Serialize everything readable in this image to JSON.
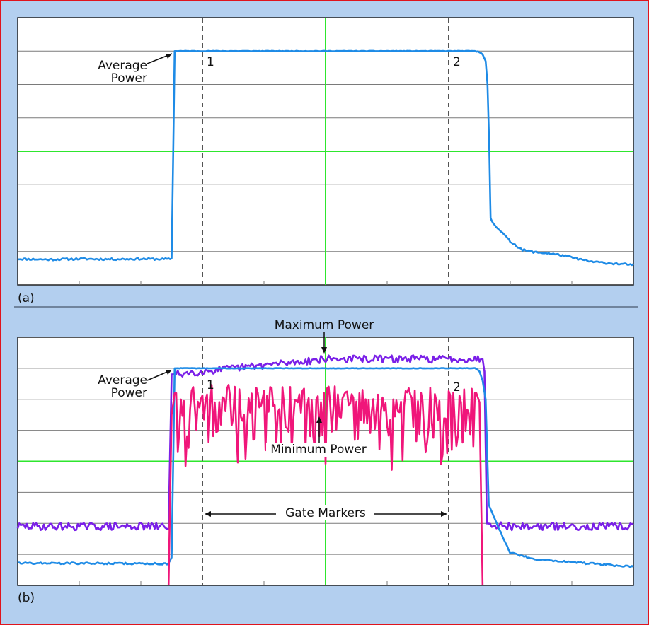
{
  "colors": {
    "background": "#b3cfef",
    "frame_border": "#e0141c",
    "plot_bg": "#ffffff",
    "grid": "#7a7a7a",
    "center_grid": "#2ee62e",
    "gate_marker": "#555555",
    "average_power": "#1e8be6",
    "maximum_power": "#7a1fe8",
    "minimum_power": "#f0167a",
    "separator": "#5a6b82",
    "text": "#111111"
  },
  "chart_data": [
    {
      "type": "line",
      "panel_label": "(a)",
      "grid": "10 x 8 divisions, center lines highlighted",
      "annotations": {
        "average_power": [
          "Average",
          "Power"
        ],
        "marker_1": "1",
        "marker_2": "2"
      },
      "x_range": [
        0,
        10
      ],
      "y_range": [
        0,
        8
      ],
      "gate_markers_x": [
        3,
        7
      ],
      "series": [
        {
          "key": "average",
          "points": [
            [
              0,
              0.78
            ],
            [
              0.5,
              0.76
            ],
            [
              1,
              0.78
            ],
            [
              1.5,
              0.77
            ],
            [
              2,
              0.78
            ],
            [
              2.48,
              0.77
            ],
            [
              2.5,
              0.8
            ],
            [
              2.55,
              7.0
            ],
            [
              2.6,
              7.0
            ],
            [
              5,
              7.0
            ],
            [
              7.4,
              7.0
            ],
            [
              7.5,
              6.98
            ],
            [
              7.55,
              6.9
            ],
            [
              7.6,
              6.7
            ],
            [
              7.63,
              6.0
            ],
            [
              7.66,
              4.0
            ],
            [
              7.68,
              2.0
            ],
            [
              7.7,
              1.9
            ],
            [
              7.8,
              1.7
            ],
            [
              8.0,
              1.3
            ],
            [
              8.2,
              1.05
            ],
            [
              8.4,
              0.98
            ],
            [
              8.6,
              0.95
            ],
            [
              8.8,
              0.9
            ],
            [
              9.0,
              0.82
            ],
            [
              9.3,
              0.7
            ],
            [
              9.6,
              0.65
            ],
            [
              10,
              0.6
            ]
          ],
          "noise": 0.03
        }
      ]
    },
    {
      "type": "line",
      "panel_label": "(b)",
      "grid": "10 x 8 divisions, center lines highlighted",
      "annotations": {
        "maximum_power": "Maximum Power",
        "average_power": [
          "Average",
          "Power"
        ],
        "minimum_power": "Minimum Power",
        "gate_markers": "Gate Markers",
        "marker_1": "1",
        "marker_2": "2"
      },
      "x_range": [
        0,
        10
      ],
      "y_range": [
        0,
        8
      ],
      "gate_markers_x": [
        3,
        7
      ],
      "series": [
        {
          "key": "maximum",
          "points": [
            [
              0,
              1.9
            ],
            [
              2.45,
              1.9
            ],
            [
              2.5,
              6.8
            ],
            [
              5,
              7.3
            ],
            [
              7.45,
              7.3
            ],
            [
              7.55,
              7.3
            ],
            [
              7.58,
              6.9
            ],
            [
              7.62,
              2.0
            ],
            [
              8,
              1.9
            ],
            [
              10,
              1.9
            ]
          ],
          "noise": 0.12
        },
        {
          "key": "average",
          "points": [
            [
              0,
              0.72
            ],
            [
              2.45,
              0.7
            ],
            [
              2.5,
              0.9
            ],
            [
              2.55,
              7.0
            ],
            [
              5,
              7.0
            ],
            [
              7.45,
              7.0
            ],
            [
              7.5,
              6.9
            ],
            [
              7.55,
              6.6
            ],
            [
              7.6,
              6.0
            ],
            [
              7.65,
              2.6
            ],
            [
              7.8,
              1.9
            ],
            [
              8.0,
              1.05
            ],
            [
              8.4,
              0.85
            ],
            [
              9.0,
              0.75
            ],
            [
              10,
              0.6
            ]
          ],
          "noise": 0.03
        },
        {
          "key": "minimum",
          "points": [
            [
              2.45,
              0
            ],
            [
              2.5,
              5.5
            ],
            [
              2.55,
              6.2
            ],
            [
              5,
              6.2
            ],
            [
              7.45,
              6.2
            ],
            [
              7.5,
              5.9
            ],
            [
              7.55,
              0
            ]
          ],
          "noise": 0.5,
          "noise_range": [
            2.6,
            7.4
          ]
        }
      ]
    }
  ]
}
